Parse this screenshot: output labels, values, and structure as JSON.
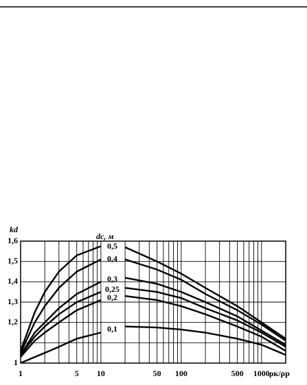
{
  "chart_data": {
    "type": "line",
    "y_label": "kd",
    "x_label": "ρк/ρр",
    "legend_title": "dc, м",
    "log_x": true,
    "grid": true,
    "color": "#000000",
    "x": [
      1,
      1.5,
      2,
      3,
      5,
      10,
      15,
      20,
      50,
      100,
      200,
      500,
      1000,
      2000
    ],
    "series": [
      {
        "name": "0,5",
        "values": [
          1.06,
          1.25,
          1.35,
          1.45,
          1.53,
          1.575,
          null,
          1.57,
          1.5,
          1.44,
          1.37,
          1.28,
          1.2,
          1.12
        ]
      },
      {
        "name": "0,4",
        "values": [
          1.05,
          1.2,
          1.28,
          1.37,
          1.45,
          1.51,
          null,
          1.51,
          1.46,
          1.41,
          1.34,
          1.26,
          1.19,
          1.11
        ]
      },
      {
        "name": "0,3",
        "values": [
          1.04,
          1.15,
          1.2,
          1.27,
          1.34,
          1.4,
          null,
          1.42,
          1.39,
          1.35,
          1.3,
          1.23,
          1.16,
          1.09
        ]
      },
      {
        "name": "0,25",
        "values": [
          1.04,
          1.13,
          1.18,
          1.24,
          1.3,
          1.35,
          null,
          1.37,
          1.35,
          1.32,
          1.27,
          1.21,
          1.15,
          1.08
        ]
      },
      {
        "name": "0,2",
        "values": [
          1.03,
          1.11,
          1.15,
          1.2,
          1.26,
          1.31,
          null,
          1.33,
          1.31,
          1.28,
          1.24,
          1.18,
          1.13,
          1.06
        ]
      },
      {
        "name": "0,1",
        "values": [
          1.0,
          1.03,
          1.05,
          1.08,
          1.12,
          1.15,
          null,
          1.18,
          1.175,
          1.165,
          1.15,
          1.12,
          1.09,
          1.04
        ]
      }
    ],
    "xlim": [
      1,
      2000
    ],
    "xticks": [
      1,
      5,
      10,
      50,
      100,
      500,
      1000
    ],
    "xgrid": [
      1,
      2,
      3,
      4,
      5,
      6,
      7,
      8,
      9,
      10,
      20,
      30,
      40,
      50,
      60,
      70,
      80,
      90,
      100,
      200,
      300,
      400,
      500,
      600,
      700,
      800,
      900,
      1000,
      2000
    ],
    "ylim": [
      1,
      1.6
    ],
    "yticks": [
      {
        "value": 1,
        "label": "1"
      },
      {
        "value": 1.2,
        "label": "1,2"
      },
      {
        "value": 1.3,
        "label": "1,3"
      },
      {
        "value": 1.4,
        "label": "1,4"
      },
      {
        "value": 1.5,
        "label": "1,5"
      },
      {
        "value": 1.6,
        "label": "1,6"
      }
    ],
    "ygrid": [
      1,
      1.1,
      1.2,
      1.3,
      1.4,
      1.5,
      1.6
    ]
  }
}
